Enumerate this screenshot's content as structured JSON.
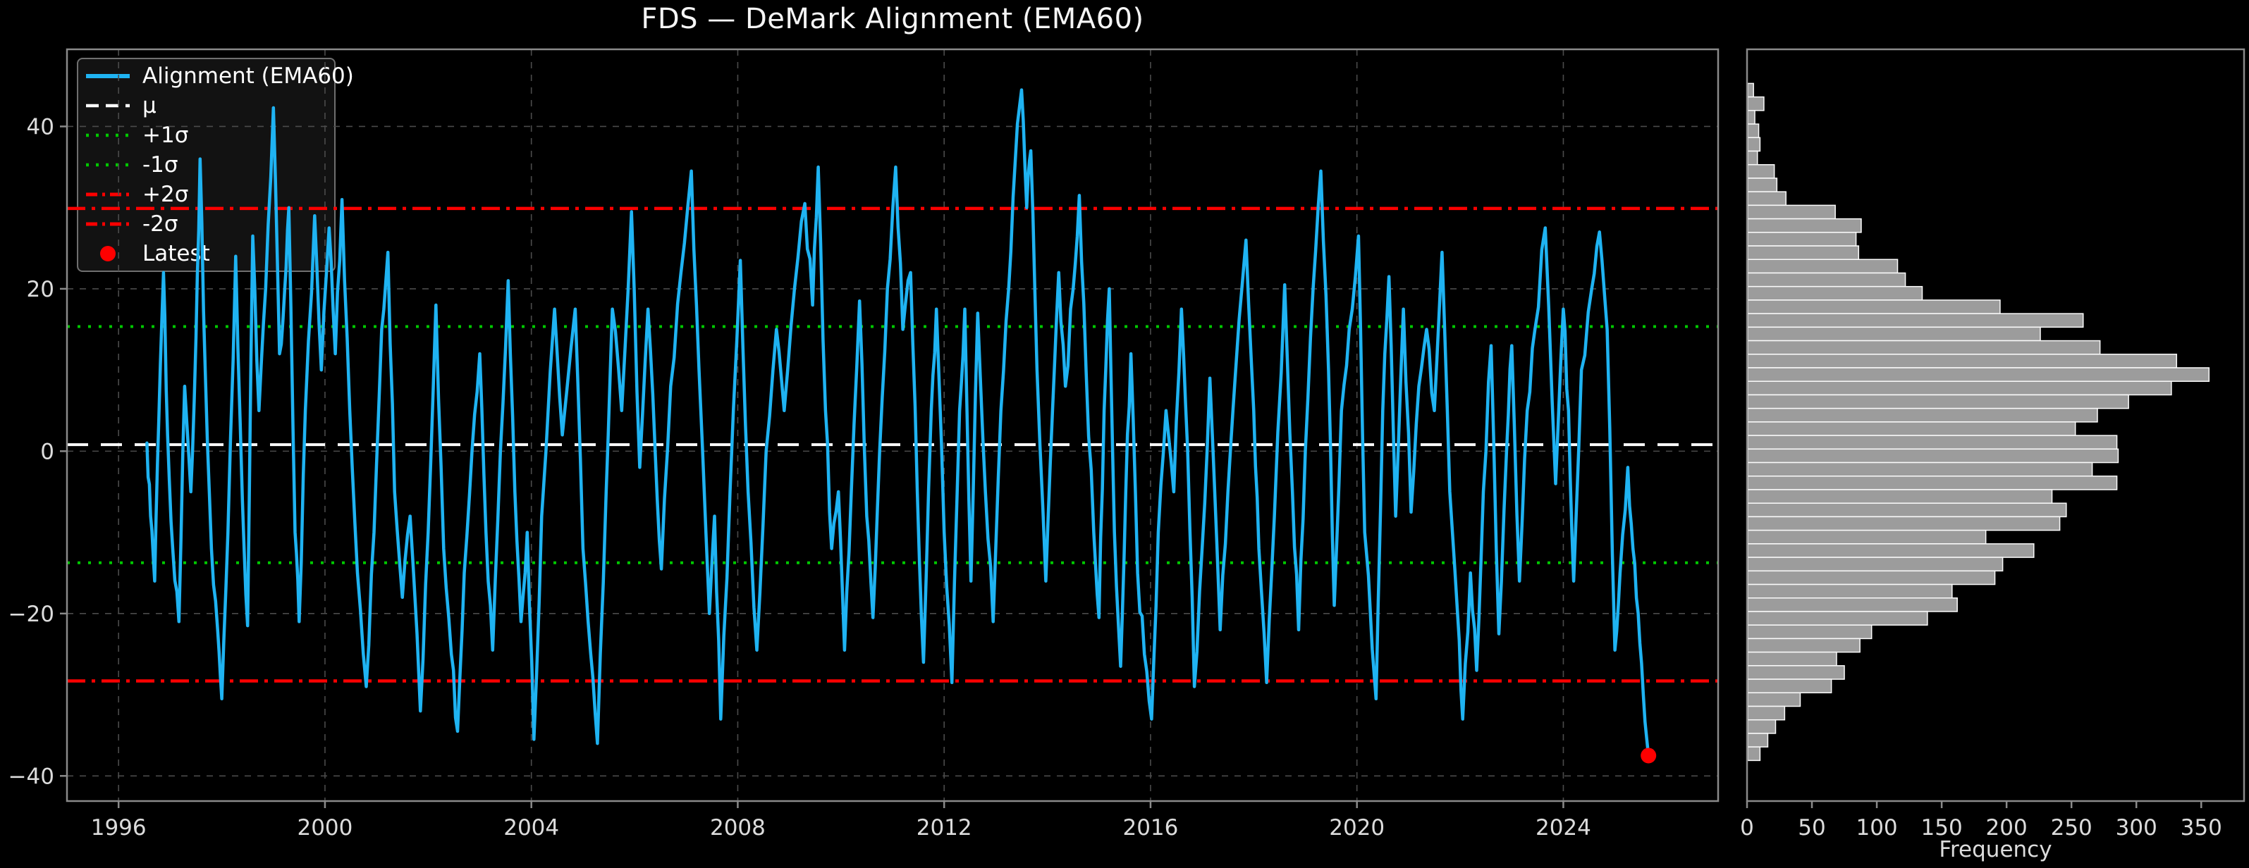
{
  "title": "FDS — DeMark Alignment (EMA60)",
  "colors": {
    "background": "#000000",
    "series": "#1fb3f2",
    "mu": "#ffffff",
    "sigma1": "#00c800",
    "sigma2": "#ff0000",
    "latest": "#ff0000",
    "hist_fill": "#9c9c9c",
    "hist_edge": "#fafafa",
    "grid": "#4b4b4b",
    "spine": "#8a8a8a",
    "tick_label": "#dcdcdc",
    "legend_border": "#6f6f6f",
    "legend_bg": "#151515",
    "legend_text": "#ffffff"
  },
  "legend": {
    "items": [
      {
        "label": "Alignment (EMA60)",
        "style": "series-line"
      },
      {
        "label": "μ",
        "style": "mu-line"
      },
      {
        "label": "+1σ",
        "style": "sigma1-line"
      },
      {
        "label": "-1σ",
        "style": "sigma1-line"
      },
      {
        "label": "+2σ",
        "style": "sigma2-line"
      },
      {
        "label": "-2σ",
        "style": "sigma2-line"
      },
      {
        "label": "Latest",
        "style": "latest-marker"
      }
    ]
  },
  "stats": {
    "mu": 0.8,
    "plus1_sigma": 15.35,
    "minus1_sigma": -13.75,
    "plus2_sigma": 29.9,
    "minus2_sigma": -28.3
  },
  "latest": {
    "year": 2025.65,
    "value": -37.5
  },
  "main_axis": {
    "x_ticks": [
      1996,
      2000,
      2004,
      2008,
      2012,
      2016,
      2020,
      2024
    ],
    "y_ticks": [
      {
        "v": 40,
        "label": "40"
      },
      {
        "v": 20,
        "label": "20"
      },
      {
        "v": 0,
        "label": "0"
      },
      {
        "v": -20,
        "label": "−20"
      },
      {
        "v": -40,
        "label": "−40"
      }
    ],
    "xlim": [
      1995.0,
      2027.0
    ],
    "ylim": [
      -43.1,
      49.5
    ],
    "grid": true
  },
  "hist": {
    "xlabel": "Frequency",
    "x_ticks": [
      0,
      50,
      100,
      150,
      200,
      250,
      300,
      350
    ],
    "xlim": [
      0,
      383
    ]
  },
  "chart_data": [
    {
      "type": "line",
      "name": "Alignment (EMA60)",
      "title": "FDS — DeMark Alignment (EMA60)",
      "xlabel": "",
      "ylabel": "",
      "xlim": [
        1995.0,
        2027.0
      ],
      "ylim": [
        -43.1,
        49.5
      ],
      "grid": true,
      "legend_position": "upper left",
      "stat_lines": {
        "mu": 0.8,
        "plus1": 15.35,
        "minus1": -13.75,
        "plus2": 29.9,
        "minus2": -28.3
      },
      "latest_point": [
        2025.65,
        -37.5
      ],
      "points": [
        [
          1996.55,
          1
        ],
        [
          1996.62,
          -8
        ],
        [
          1996.7,
          -16
        ],
        [
          1996.78,
          4
        ],
        [
          1996.87,
          22
        ],
        [
          1996.95,
          2
        ],
        [
          1997.05,
          -12
        ],
        [
          1997.17,
          -21
        ],
        [
          1997.28,
          8
        ],
        [
          1997.4,
          -5
        ],
        [
          1997.5,
          14
        ],
        [
          1997.58,
          36
        ],
        [
          1997.68,
          10
        ],
        [
          1997.8,
          -12
        ],
        [
          1997.92,
          -22
        ],
        [
          1998.0,
          -30.5
        ],
        [
          1998.12,
          -10
        ],
        [
          1998.27,
          24
        ],
        [
          1998.4,
          -6
        ],
        [
          1998.5,
          -21.5
        ],
        [
          1998.6,
          26.5
        ],
        [
          1998.72,
          5
        ],
        [
          1998.85,
          20
        ],
        [
          1999.0,
          42.3
        ],
        [
          1999.12,
          12
        ],
        [
          1999.22,
          20
        ],
        [
          1999.3,
          30
        ],
        [
          1999.42,
          -10
        ],
        [
          1999.5,
          -21
        ],
        [
          1999.62,
          5
        ],
        [
          1999.8,
          29
        ],
        [
          1999.93,
          10
        ],
        [
          2000.08,
          27.5
        ],
        [
          2000.2,
          12
        ],
        [
          2000.33,
          31
        ],
        [
          2000.48,
          5
        ],
        [
          2000.63,
          -15
        ],
        [
          2000.8,
          -29
        ],
        [
          2000.95,
          -10
        ],
        [
          2001.1,
          15
        ],
        [
          2001.22,
          24.5
        ],
        [
          2001.35,
          -5
        ],
        [
          2001.5,
          -18
        ],
        [
          2001.65,
          -8
        ],
        [
          2001.85,
          -32
        ],
        [
          2002.0,
          -10
        ],
        [
          2002.15,
          18
        ],
        [
          2002.3,
          -12
        ],
        [
          2002.45,
          -25
        ],
        [
          2002.57,
          -34.5
        ],
        [
          2002.7,
          -15
        ],
        [
          2002.85,
          0
        ],
        [
          2003.0,
          12
        ],
        [
          2003.12,
          -10
        ],
        [
          2003.25,
          -24.5
        ],
        [
          2003.4,
          0
        ],
        [
          2003.55,
          21
        ],
        [
          2003.68,
          -5
        ],
        [
          2003.8,
          -21
        ],
        [
          2003.92,
          -10
        ],
        [
          2004.05,
          -35.5
        ],
        [
          2004.2,
          -8
        ],
        [
          2004.45,
          17.5
        ],
        [
          2004.6,
          2
        ],
        [
          2004.85,
          17.5
        ],
        [
          2005.0,
          -12
        ],
        [
          2005.15,
          -25
        ],
        [
          2005.28,
          -36
        ],
        [
          2005.45,
          -5
        ],
        [
          2005.57,
          17.5
        ],
        [
          2005.75,
          5
        ],
        [
          2005.94,
          29.5
        ],
        [
          2006.1,
          -2
        ],
        [
          2006.26,
          17.5
        ],
        [
          2006.4,
          0
        ],
        [
          2006.52,
          -14.5
        ],
        [
          2006.7,
          8
        ],
        [
          2006.9,
          22
        ],
        [
          2007.1,
          34.5
        ],
        [
          2007.25,
          10
        ],
        [
          2007.45,
          -20
        ],
        [
          2007.55,
          -8
        ],
        [
          2007.67,
          -33
        ],
        [
          2007.85,
          -5
        ],
        [
          2008.05,
          23.5
        ],
        [
          2008.2,
          -5
        ],
        [
          2008.37,
          -24.5
        ],
        [
          2008.55,
          0
        ],
        [
          2008.75,
          15
        ],
        [
          2008.9,
          5
        ],
        [
          2009.1,
          20
        ],
        [
          2009.3,
          30.5
        ],
        [
          2009.45,
          18
        ],
        [
          2009.56,
          35
        ],
        [
          2009.7,
          5
        ],
        [
          2009.82,
          -12
        ],
        [
          2009.95,
          -5
        ],
        [
          2010.07,
          -24.5
        ],
        [
          2010.2,
          -5
        ],
        [
          2010.36,
          18.5
        ],
        [
          2010.5,
          -8
        ],
        [
          2010.62,
          -20.5
        ],
        [
          2010.75,
          0
        ],
        [
          2010.9,
          20
        ],
        [
          2011.06,
          35
        ],
        [
          2011.2,
          15
        ],
        [
          2011.35,
          22
        ],
        [
          2011.48,
          -5
        ],
        [
          2011.6,
          -26
        ],
        [
          2011.75,
          5
        ],
        [
          2011.85,
          17.5
        ],
        [
          2012.0,
          -10
        ],
        [
          2012.15,
          -28.5
        ],
        [
          2012.3,
          5
        ],
        [
          2012.4,
          17.5
        ],
        [
          2012.52,
          -16
        ],
        [
          2012.65,
          17
        ],
        [
          2012.8,
          -5
        ],
        [
          2012.95,
          -21
        ],
        [
          2013.1,
          5
        ],
        [
          2013.25,
          20
        ],
        [
          2013.38,
          36
        ],
        [
          2013.5,
          44.5
        ],
        [
          2013.6,
          30
        ],
        [
          2013.68,
          37
        ],
        [
          2013.8,
          10
        ],
        [
          2013.97,
          -16
        ],
        [
          2014.1,
          5
        ],
        [
          2014.22,
          22
        ],
        [
          2014.35,
          8
        ],
        [
          2014.5,
          20
        ],
        [
          2014.62,
          31.5
        ],
        [
          2014.75,
          10
        ],
        [
          2014.9,
          -10
        ],
        [
          2015.0,
          -20.5
        ],
        [
          2015.1,
          5
        ],
        [
          2015.2,
          20
        ],
        [
          2015.3,
          -10
        ],
        [
          2015.42,
          -26.5
        ],
        [
          2015.52,
          -5
        ],
        [
          2015.62,
          12
        ],
        [
          2015.75,
          -15
        ],
        [
          2015.88,
          -25
        ],
        [
          2016.02,
          -33
        ],
        [
          2016.15,
          -10
        ],
        [
          2016.3,
          5
        ],
        [
          2016.45,
          -5
        ],
        [
          2016.6,
          17.5
        ],
        [
          2016.72,
          0
        ],
        [
          2016.85,
          -29
        ],
        [
          2017.0,
          -12
        ],
        [
          2017.15,
          9
        ],
        [
          2017.35,
          -22
        ],
        [
          2017.5,
          -5
        ],
        [
          2017.65,
          10
        ],
        [
          2017.85,
          26
        ],
        [
          2018.0,
          5
        ],
        [
          2018.1,
          -12
        ],
        [
          2018.25,
          -28.5
        ],
        [
          2018.4,
          -8
        ],
        [
          2018.6,
          20.5
        ],
        [
          2018.75,
          -5
        ],
        [
          2018.87,
          -22
        ],
        [
          2019.0,
          0
        ],
        [
          2019.15,
          20
        ],
        [
          2019.3,
          34.5
        ],
        [
          2019.45,
          10
        ],
        [
          2019.56,
          -19
        ],
        [
          2019.7,
          5
        ],
        [
          2019.85,
          15
        ],
        [
          2020.03,
          26.5
        ],
        [
          2020.15,
          -10
        ],
        [
          2020.37,
          -30.5
        ],
        [
          2020.5,
          5
        ],
        [
          2020.62,
          21.5
        ],
        [
          2020.75,
          -8
        ],
        [
          2020.9,
          17.5
        ],
        [
          2021.05,
          -7.5
        ],
        [
          2021.2,
          8
        ],
        [
          2021.35,
          15
        ],
        [
          2021.5,
          5
        ],
        [
          2021.65,
          24.5
        ],
        [
          2021.8,
          -5
        ],
        [
          2021.95,
          -20
        ],
        [
          2022.05,
          -33
        ],
        [
          2022.2,
          -15
        ],
        [
          2022.32,
          -27
        ],
        [
          2022.45,
          -5
        ],
        [
          2022.6,
          13
        ],
        [
          2022.75,
          -22.5
        ],
        [
          2022.9,
          0
        ],
        [
          2023.0,
          13
        ],
        [
          2023.15,
          -16
        ],
        [
          2023.3,
          5
        ],
        [
          2023.45,
          15
        ],
        [
          2023.65,
          27.5
        ],
        [
          2023.85,
          -4
        ],
        [
          2024.0,
          17.5
        ],
        [
          2024.1,
          5
        ],
        [
          2024.2,
          -16
        ],
        [
          2024.35,
          10
        ],
        [
          2024.55,
          20
        ],
        [
          2024.7,
          27
        ],
        [
          2024.85,
          15
        ],
        [
          2025.0,
          -24.5
        ],
        [
          2025.1,
          -15
        ],
        [
          2025.25,
          -2
        ],
        [
          2025.35,
          -12
        ],
        [
          2025.45,
          -20
        ],
        [
          2025.55,
          -30
        ],
        [
          2025.65,
          -37.5
        ]
      ]
    },
    {
      "type": "bar",
      "name": "Alignment distribution",
      "orientation": "horizontal",
      "xlabel": "Frequency",
      "xlim": [
        0,
        383
      ],
      "bins": 50,
      "bin_top": 45.3,
      "bin_width": 1.668,
      "frequencies_top_to_bottom": [
        5,
        13,
        6,
        9,
        10,
        8,
        21,
        23,
        30,
        68,
        88,
        84,
        86,
        116,
        122,
        135,
        195,
        259,
        226,
        272,
        331,
        356,
        327,
        294,
        270,
        253,
        285,
        286,
        266,
        285,
        235,
        246,
        241,
        184,
        221,
        197,
        191,
        158,
        162,
        139,
        96,
        87,
        69,
        75,
        65,
        41,
        29,
        22,
        16,
        10
      ]
    }
  ]
}
